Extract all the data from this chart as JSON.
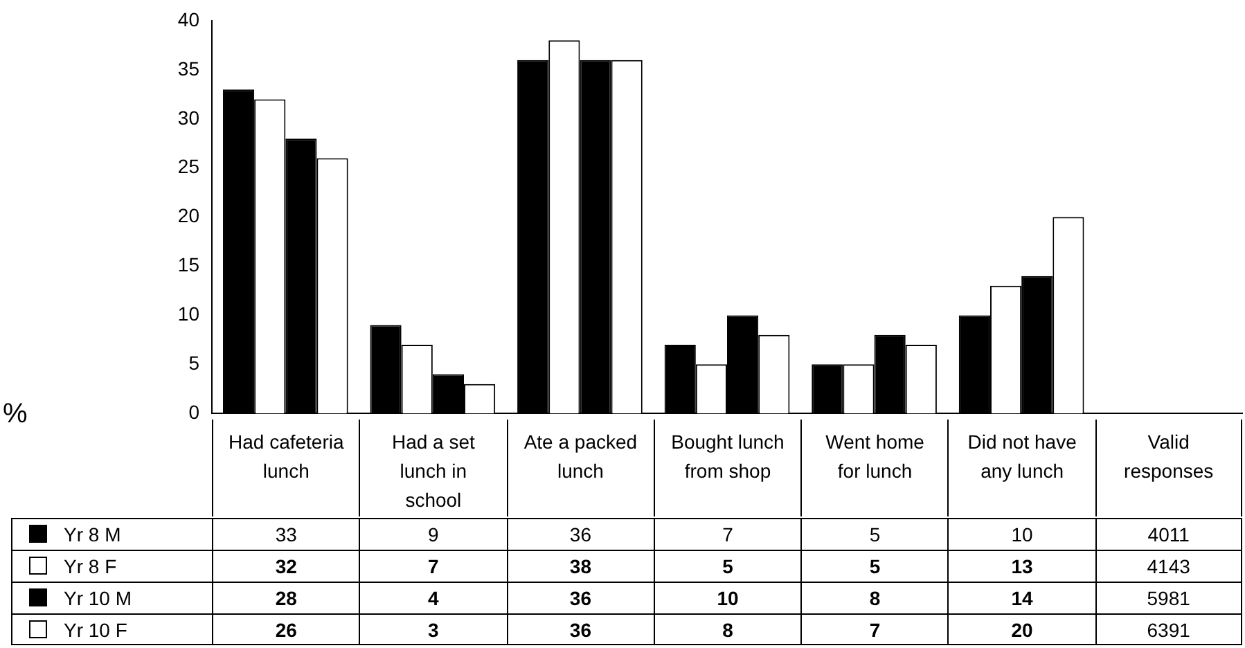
{
  "chart_data": {
    "type": "bar",
    "annotations": [
      "%"
    ],
    "legend": "bottom left",
    "categories": [
      "Had cafeteria lunch",
      "Had a set lunch in school",
      "Ate a packed lunch",
      "Bought lunch from shop",
      "Went home for lunch",
      "Did not have any lunch",
      "Valid responses"
    ],
    "series": [
      {
        "name": "Yr 8 M",
        "color": "#000000",
        "values": [
          33,
          9,
          36,
          7,
          5,
          10,
          null
        ],
        "value_labels": [
          "33",
          "9",
          "36",
          "7",
          "5",
          "10",
          "4011"
        ]
      },
      {
        "name": "Yr 8 F",
        "color": "#ffffff",
        "values": [
          32,
          7,
          38,
          5,
          5,
          13,
          null
        ],
        "value_labels": [
          "32",
          "7",
          "38",
          "5",
          "5",
          "13",
          "4143"
        ]
      },
      {
        "name": "Yr 10 M",
        "color": "#000000",
        "values": [
          28,
          4,
          36,
          10,
          8,
          14,
          null
        ],
        "value_labels": [
          "28",
          "4",
          "36",
          "10",
          "8",
          "14",
          "5981"
        ]
      },
      {
        "name": "Yr 10 F",
        "color": "#ffffff",
        "values": [
          26,
          3,
          36,
          8,
          7,
          20,
          null
        ],
        "value_labels": [
          "26",
          "3",
          "36",
          "8",
          "7",
          "20",
          "6391"
        ]
      }
    ],
    "ylim": [
      0,
      40
    ],
    "yticks": [
      0,
      5,
      10,
      15,
      20,
      25,
      30,
      35,
      40
    ],
    "grid": false
  }
}
